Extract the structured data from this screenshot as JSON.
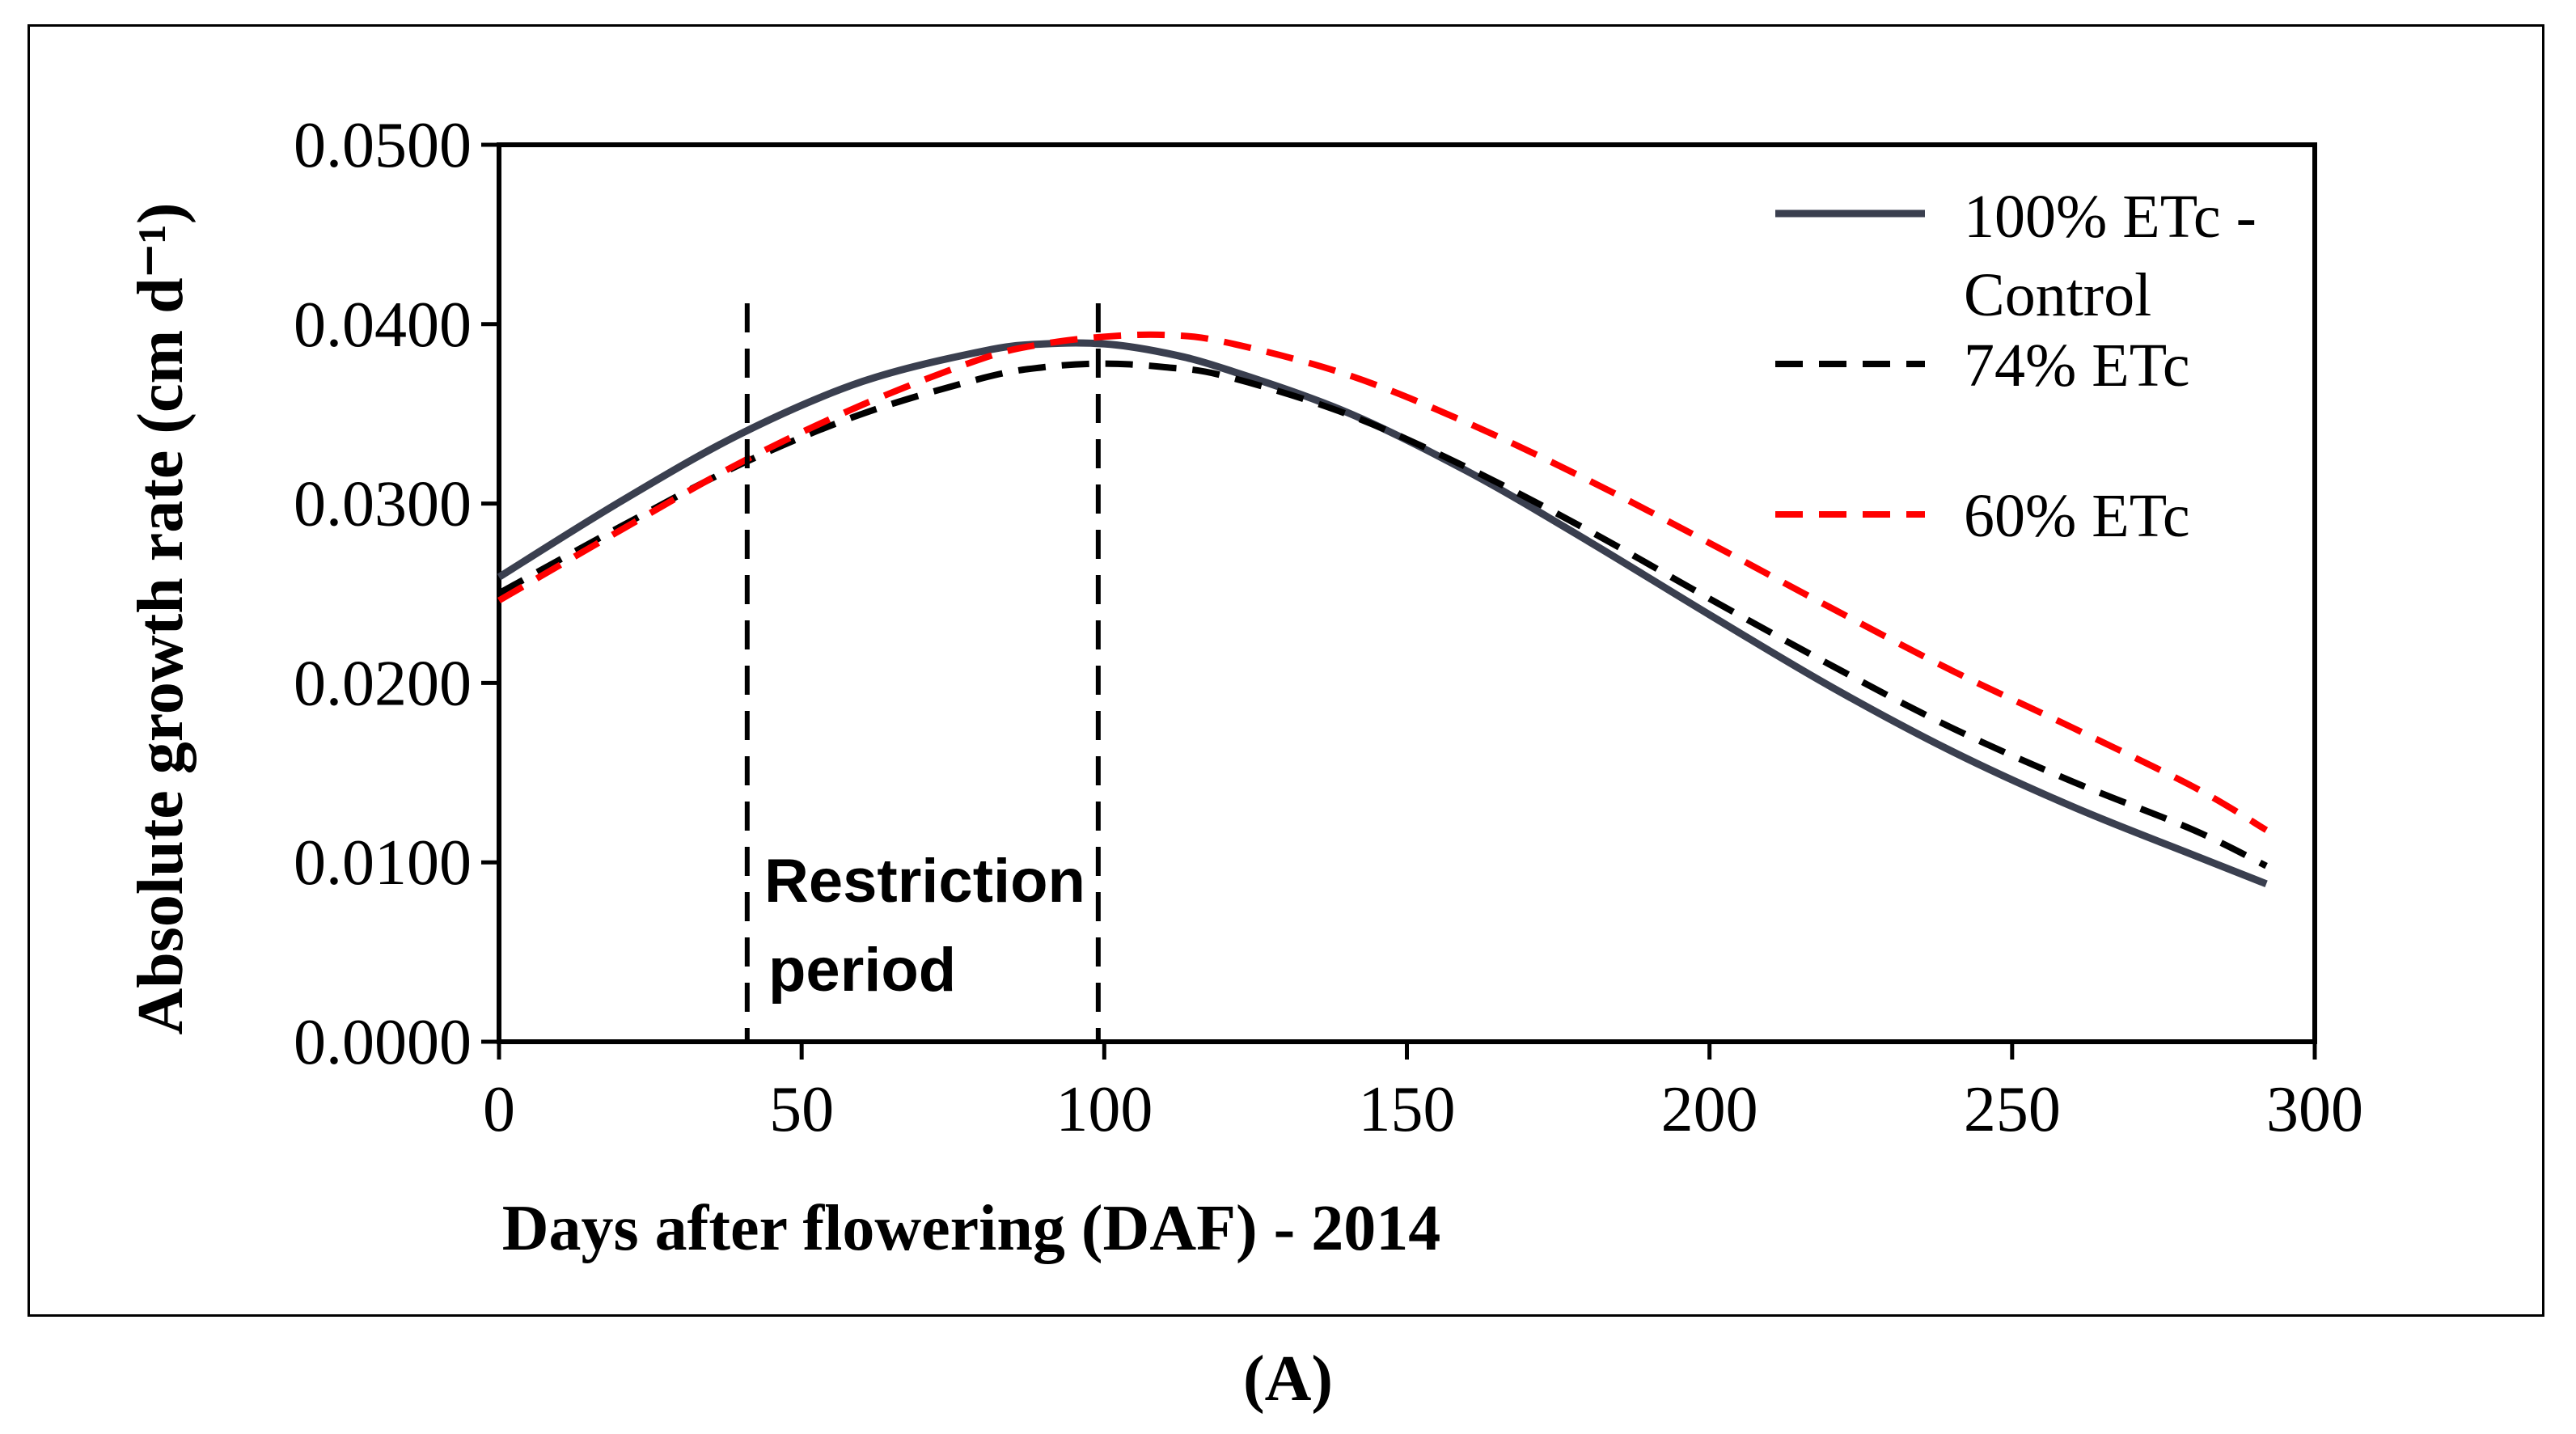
{
  "chart_data": {
    "type": "line",
    "xlabel": "Days after flowering (DAF) - 2014",
    "ylabel": "Absolute growth rate (cm d⁻¹)",
    "xlim": [
      0,
      300
    ],
    "ylim": [
      0,
      0.05
    ],
    "x_ticks": [
      0,
      50,
      100,
      150,
      200,
      250,
      300
    ],
    "x_tick_labels": [
      "0",
      "50",
      "100",
      "150",
      "200",
      "250",
      "300"
    ],
    "y_ticks": [
      0,
      0.01,
      0.02,
      0.03,
      0.04,
      0.05
    ],
    "y_tick_labels": [
      "0.0000",
      "0.0100",
      "0.0200",
      "0.0300",
      "0.0400",
      "0.0500"
    ],
    "grid": false,
    "legend_position": "top-right",
    "x": [
      0,
      20,
      40,
      60,
      80,
      90,
      100,
      110,
      120,
      140,
      160,
      180,
      200,
      220,
      240,
      260,
      280,
      292
    ],
    "series": [
      {
        "name": "100% ETc - Control",
        "legend_lines": [
          "100% ETc -",
          "Control"
        ],
        "color": "#3a3f4f",
        "dash": "solid",
        "values": [
          0.0259,
          0.0301,
          0.0339,
          0.0368,
          0.0385,
          0.0389,
          0.0389,
          0.0384,
          0.0375,
          0.0351,
          0.0318,
          0.0279,
          0.0238,
          0.0198,
          0.0162,
          0.0131,
          0.0104,
          0.0088
        ]
      },
      {
        "name": "74% ETc",
        "legend_lines": [
          "74% ETc"
        ],
        "color": "#000000",
        "dash": "dashed",
        "values": [
          0.025,
          0.0287,
          0.0322,
          0.035,
          0.037,
          0.0376,
          0.0378,
          0.0376,
          0.0371,
          0.035,
          0.032,
          0.0285,
          0.0247,
          0.021,
          0.0175,
          0.0145,
          0.0118,
          0.0098
        ]
      },
      {
        "name": "60% ETc",
        "legend_lines": [
          "60% ETc"
        ],
        "color": "#ff0000",
        "dash": "dashed",
        "values": [
          0.0246,
          0.0285,
          0.0323,
          0.0355,
          0.0381,
          0.0389,
          0.0393,
          0.0394,
          0.039,
          0.0372,
          0.0345,
          0.0313,
          0.0278,
          0.0242,
          0.0207,
          0.0175,
          0.0142,
          0.0118
        ]
      }
    ],
    "vertical_markers": [
      41,
      99
    ],
    "annotation": [
      "Restriction",
      "period"
    ]
  },
  "caption": "(A)"
}
